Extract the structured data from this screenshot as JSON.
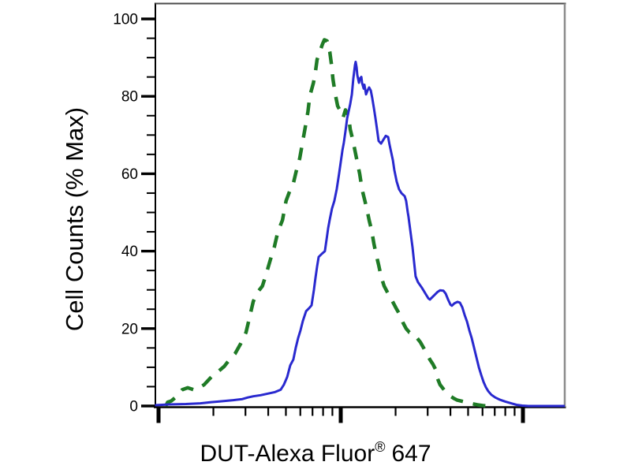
{
  "figure": {
    "background": "#ffffff",
    "frame": {
      "left_axis_color": "#000000",
      "bottom_axis_color": "#000000",
      "top_border_color": "#4a4a4a",
      "right_border_color": "#8c8c8c"
    }
  },
  "chart_data": {
    "type": "line",
    "subtype": "flow-cytometry-overlay-histogram",
    "title": "",
    "ylabel": "Cell Counts (% Max)",
    "xlabel_main": "DUT-Alexa Fluor",
    "xlabel_sup": "®",
    "xlabel_suffix": "647",
    "x_axis": {
      "scale": "log10",
      "tick_labels": "none",
      "decades_shown": [
        -0.03,
        2.23
      ],
      "major_tick_decades": [
        0,
        1,
        2
      ],
      "minor_ticks": "log-spaced at 2..9 within each decade"
    },
    "y_axis": {
      "range": [
        0,
        100
      ],
      "major_ticks": [
        0,
        20,
        40,
        60,
        80,
        100
      ],
      "minor_step": 5
    },
    "grid": "off",
    "legend": "none",
    "series": [
      {
        "key": "green-dashed-curve",
        "name": "green dashed histogram",
        "style": "dashed",
        "color": "#1f7b26",
        "peak": {
          "x_decade": 0.91,
          "percent_max": 94.6
        },
        "points": [
          [
            0.04,
            0
          ],
          [
            0.05,
            1
          ],
          [
            0.07,
            1.3
          ],
          [
            0.1,
            2.5
          ],
          [
            0.13,
            4.2
          ],
          [
            0.16,
            4.7
          ],
          [
            0.18,
            4.4
          ],
          [
            0.2,
            4.1
          ],
          [
            0.22,
            4.6
          ],
          [
            0.25,
            5.5
          ],
          [
            0.27,
            6.5
          ],
          [
            0.3,
            8
          ],
          [
            0.33,
            9
          ],
          [
            0.36,
            10.2
          ],
          [
            0.39,
            12
          ],
          [
            0.42,
            13.5
          ],
          [
            0.45,
            16
          ],
          [
            0.48,
            19
          ],
          [
            0.5,
            23
          ],
          [
            0.52,
            27
          ],
          [
            0.545,
            29.5
          ],
          [
            0.57,
            31
          ],
          [
            0.59,
            34
          ],
          [
            0.615,
            38
          ],
          [
            0.635,
            41
          ],
          [
            0.655,
            45
          ],
          [
            0.68,
            48
          ],
          [
            0.7,
            53
          ],
          [
            0.72,
            55.5
          ],
          [
            0.74,
            57.5
          ],
          [
            0.755,
            60.5
          ],
          [
            0.775,
            64
          ],
          [
            0.79,
            68
          ],
          [
            0.805,
            72
          ],
          [
            0.82,
            76
          ],
          [
            0.83,
            80
          ],
          [
            0.85,
            83.5
          ],
          [
            0.86,
            86
          ],
          [
            0.87,
            89.5
          ],
          [
            0.885,
            91.5
          ],
          [
            0.9,
            93.5
          ],
          [
            0.91,
            94.6
          ],
          [
            0.925,
            94.3
          ],
          [
            0.94,
            91.5
          ],
          [
            0.95,
            88
          ],
          [
            0.957,
            84.5
          ],
          [
            0.97,
            80.5
          ],
          [
            0.983,
            77.5
          ],
          [
            1.0,
            76
          ],
          [
            1.013,
            74.5
          ],
          [
            1.026,
            76.5
          ],
          [
            1.043,
            75
          ],
          [
            1.052,
            71.5
          ],
          [
            1.065,
            69
          ],
          [
            1.078,
            66
          ],
          [
            1.091,
            63
          ],
          [
            1.104,
            60
          ],
          [
            1.117,
            56
          ],
          [
            1.13,
            53.5
          ],
          [
            1.143,
            51
          ],
          [
            1.156,
            48
          ],
          [
            1.169,
            45.5
          ],
          [
            1.182,
            42
          ],
          [
            1.195,
            39
          ],
          [
            1.208,
            36.5
          ],
          [
            1.221,
            33.5
          ],
          [
            1.238,
            31
          ],
          [
            1.255,
            29.5
          ],
          [
            1.273,
            28
          ],
          [
            1.29,
            26.5
          ],
          [
            1.307,
            25
          ],
          [
            1.325,
            23.5
          ],
          [
            1.342,
            21.5
          ],
          [
            1.359,
            20
          ],
          [
            1.377,
            19
          ],
          [
            1.398,
            18.7
          ],
          [
            1.42,
            17.5
          ],
          [
            1.437,
            16.5
          ],
          [
            1.455,
            15
          ],
          [
            1.472,
            13.5
          ],
          [
            1.489,
            12
          ],
          [
            1.506,
            10.8
          ],
          [
            1.52,
            9.5
          ],
          [
            1.532,
            7
          ],
          [
            1.545,
            5.5
          ],
          [
            1.563,
            4.4
          ],
          [
            1.58,
            3.4
          ],
          [
            1.6,
            2.6
          ],
          [
            1.62,
            2
          ],
          [
            1.64,
            1.5
          ],
          [
            1.667,
            1.2
          ],
          [
            1.693,
            0.9
          ],
          [
            1.72,
            0.6
          ],
          [
            1.75,
            0.3
          ],
          [
            1.78,
            0.1
          ],
          [
            1.81,
            0
          ]
        ]
      },
      {
        "key": "blue-solid-curve",
        "name": "blue solid histogram",
        "style": "solid",
        "color": "#2929cf",
        "peak": {
          "x_decade": 1.082,
          "percent_max": 88.9
        },
        "points": [
          [
            -0.02,
            0.2
          ],
          [
            0.06,
            0.4
          ],
          [
            0.15,
            0.5
          ],
          [
            0.23,
            0.7
          ],
          [
            0.29,
            1
          ],
          [
            0.34,
            1.2
          ],
          [
            0.41,
            1.5
          ],
          [
            0.46,
            1.8
          ],
          [
            0.49,
            2.2
          ],
          [
            0.52,
            2.5
          ],
          [
            0.56,
            2.8
          ],
          [
            0.6,
            3.2
          ],
          [
            0.64,
            3.6
          ],
          [
            0.67,
            4.2
          ],
          [
            0.688,
            5.5
          ],
          [
            0.706,
            7.5
          ],
          [
            0.723,
            10.5
          ],
          [
            0.74,
            12
          ],
          [
            0.753,
            15
          ],
          [
            0.766,
            17.5
          ],
          [
            0.779,
            19.5
          ],
          [
            0.792,
            22
          ],
          [
            0.81,
            24.5
          ],
          [
            0.827,
            25.3
          ],
          [
            0.84,
            26
          ],
          [
            0.853,
            30
          ],
          [
            0.861,
            33
          ],
          [
            0.87,
            36
          ],
          [
            0.879,
            38.5
          ],
          [
            0.896,
            39.3
          ],
          [
            0.913,
            40
          ],
          [
            0.922,
            43
          ],
          [
            0.931,
            46
          ],
          [
            0.939,
            48
          ],
          [
            0.952,
            51
          ],
          [
            0.965,
            53
          ],
          [
            0.978,
            56
          ],
          [
            0.991,
            60
          ],
          [
            1.0,
            63
          ],
          [
            1.009,
            66
          ],
          [
            1.017,
            68
          ],
          [
            1.026,
            71
          ],
          [
            1.035,
            74.3
          ],
          [
            1.043,
            76
          ],
          [
            1.052,
            78
          ],
          [
            1.061,
            80.5
          ],
          [
            1.069,
            84.5
          ],
          [
            1.078,
            88
          ],
          [
            1.082,
            88.9
          ],
          [
            1.087,
            87.5
          ],
          [
            1.091,
            85.5
          ],
          [
            1.1,
            83.5
          ],
          [
            1.104,
            84.5
          ],
          [
            1.113,
            85
          ],
          [
            1.117,
            83.5
          ],
          [
            1.126,
            82
          ],
          [
            1.13,
            83
          ],
          [
            1.139,
            80.5
          ],
          [
            1.147,
            81.5
          ],
          [
            1.156,
            82.3
          ],
          [
            1.165,
            81.5
          ],
          [
            1.173,
            79.5
          ],
          [
            1.182,
            77
          ],
          [
            1.19,
            74.5
          ],
          [
            1.199,
            71.5
          ],
          [
            1.208,
            68.5
          ],
          [
            1.221,
            67.8
          ],
          [
            1.234,
            68.8
          ],
          [
            1.247,
            69.8
          ],
          [
            1.26,
            69.5
          ],
          [
            1.268,
            67.5
          ],
          [
            1.277,
            65.5
          ],
          [
            1.286,
            63.5
          ],
          [
            1.294,
            61
          ],
          [
            1.307,
            58
          ],
          [
            1.32,
            56
          ],
          [
            1.333,
            55
          ],
          [
            1.351,
            54.2
          ],
          [
            1.359,
            53
          ],
          [
            1.368,
            50
          ],
          [
            1.372,
            48.9
          ],
          [
            1.394,
            41
          ],
          [
            1.403,
            37
          ],
          [
            1.411,
            33.5
          ],
          [
            1.424,
            32
          ],
          [
            1.446,
            30.5
          ],
          [
            1.468,
            28.8
          ],
          [
            1.481,
            27.8
          ],
          [
            1.489,
            27.5
          ],
          [
            1.511,
            28.5
          ],
          [
            1.532,
            29.5
          ],
          [
            1.545,
            29.9
          ],
          [
            1.563,
            29.8
          ],
          [
            1.576,
            29
          ],
          [
            1.589,
            27.5
          ],
          [
            1.602,
            26.2
          ],
          [
            1.61,
            25.9
          ],
          [
            1.623,
            26.5
          ],
          [
            1.641,
            26.9
          ],
          [
            1.654,
            26.7
          ],
          [
            1.667,
            25.5
          ],
          [
            1.68,
            23.5
          ],
          [
            1.693,
            21.8
          ],
          [
            1.706,
            19.5
          ],
          [
            1.719,
            17.5
          ],
          [
            1.732,
            15
          ],
          [
            1.745,
            12.5
          ],
          [
            1.758,
            10
          ],
          [
            1.771,
            8
          ],
          [
            1.784,
            6.2
          ],
          [
            1.797,
            4.8
          ],
          [
            1.81,
            3.8
          ],
          [
            1.827,
            2.9
          ],
          [
            1.848,
            2.2
          ],
          [
            1.874,
            1.6
          ],
          [
            1.905,
            1.1
          ],
          [
            1.935,
            0.7
          ],
          [
            1.965,
            0.3
          ],
          [
            1.996,
            0.1
          ],
          [
            2.03,
            0
          ],
          [
            2.23,
            0
          ]
        ]
      }
    ]
  }
}
